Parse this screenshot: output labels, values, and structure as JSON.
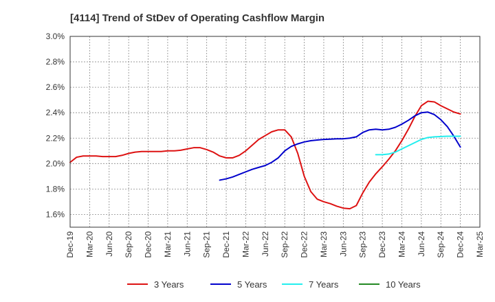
{
  "chart_data": {
    "type": "line",
    "title": "[4114]  Trend of StDev of Operating Cashflow Margin",
    "xlabel": "",
    "ylabel": "",
    "ylim": [
      1.5,
      3.0
    ],
    "y_ticks": [
      1.6,
      1.8,
      2.0,
      2.2,
      2.4,
      2.6,
      2.8,
      3.0
    ],
    "y_tick_labels": [
      "1.6%",
      "1.8%",
      "2.0%",
      "2.2%",
      "2.4%",
      "2.6%",
      "2.8%",
      "3.0%"
    ],
    "x_tick_labels": [
      "Dec-19",
      "Mar-20",
      "Jun-20",
      "Sep-20",
      "Dec-20",
      "Mar-21",
      "Jun-21",
      "Sep-21",
      "Dec-21",
      "Mar-22",
      "Jun-22",
      "Sep-22",
      "Dec-22",
      "Mar-23",
      "Jun-23",
      "Sep-23",
      "Dec-23",
      "Mar-24",
      "Jun-24",
      "Sep-24",
      "Dec-24",
      "Mar-25"
    ],
    "grid": true,
    "legend_position": "bottom",
    "series": [
      {
        "name": "3 Years",
        "color": "#dd1111",
        "points": [
          [
            "Dec-19",
            2.01
          ],
          [
            "Jan-20",
            2.05
          ],
          [
            "Feb-20",
            2.06
          ],
          [
            "Mar-20",
            2.06
          ],
          [
            "Apr-20",
            2.06
          ],
          [
            "May-20",
            2.055
          ],
          [
            "Jun-20",
            2.055
          ],
          [
            "Jul-20",
            2.055
          ],
          [
            "Aug-20",
            2.065
          ],
          [
            "Sep-20",
            2.08
          ],
          [
            "Oct-20",
            2.09
          ],
          [
            "Nov-20",
            2.095
          ],
          [
            "Dec-20",
            2.095
          ],
          [
            "Jan-21",
            2.095
          ],
          [
            "Feb-21",
            2.095
          ],
          [
            "Mar-21",
            2.1
          ],
          [
            "Apr-21",
            2.1
          ],
          [
            "May-21",
            2.105
          ],
          [
            "Jun-21",
            2.115
          ],
          [
            "Jul-21",
            2.125
          ],
          [
            "Aug-21",
            2.125
          ],
          [
            "Sep-21",
            2.11
          ],
          [
            "Oct-21",
            2.09
          ],
          [
            "Nov-21",
            2.06
          ],
          [
            "Dec-21",
            2.045
          ],
          [
            "Jan-22",
            2.045
          ],
          [
            "Feb-22",
            2.065
          ],
          [
            "Mar-22",
            2.1
          ],
          [
            "Apr-22",
            2.145
          ],
          [
            "May-22",
            2.19
          ],
          [
            "Jun-22",
            2.22
          ],
          [
            "Jul-22",
            2.25
          ],
          [
            "Aug-22",
            2.265
          ],
          [
            "Sep-22",
            2.265
          ],
          [
            "Oct-22",
            2.21
          ],
          [
            "Nov-22",
            2.08
          ],
          [
            "Dec-22",
            1.9
          ],
          [
            "Jan-23",
            1.78
          ],
          [
            "Feb-23",
            1.72
          ],
          [
            "Mar-23",
            1.7
          ],
          [
            "Apr-23",
            1.685
          ],
          [
            "May-23",
            1.665
          ],
          [
            "Jun-23",
            1.65
          ],
          [
            "Jul-23",
            1.645
          ],
          [
            "Aug-23",
            1.67
          ],
          [
            "Sep-23",
            1.77
          ],
          [
            "Oct-23",
            1.855
          ],
          [
            "Nov-23",
            1.92
          ],
          [
            "Dec-23",
            1.975
          ],
          [
            "Jan-24",
            2.035
          ],
          [
            "Feb-24",
            2.1
          ],
          [
            "Mar-24",
            2.18
          ],
          [
            "Apr-24",
            2.27
          ],
          [
            "May-24",
            2.37
          ],
          [
            "Jun-24",
            2.455
          ],
          [
            "Jul-24",
            2.49
          ],
          [
            "Aug-24",
            2.485
          ],
          [
            "Sep-24",
            2.455
          ],
          [
            "Oct-24",
            2.43
          ],
          [
            "Nov-24",
            2.405
          ],
          [
            "Dec-24",
            2.39
          ]
        ]
      },
      {
        "name": "5 Years",
        "color": "#0000cc",
        "points": [
          [
            "Nov-21",
            1.87
          ],
          [
            "Dec-21",
            1.88
          ],
          [
            "Jan-22",
            1.895
          ],
          [
            "Feb-22",
            1.915
          ],
          [
            "Mar-22",
            1.935
          ],
          [
            "Apr-22",
            1.955
          ],
          [
            "May-22",
            1.97
          ],
          [
            "Jun-22",
            1.985
          ],
          [
            "Jul-22",
            2.01
          ],
          [
            "Aug-22",
            2.045
          ],
          [
            "Sep-22",
            2.1
          ],
          [
            "Oct-22",
            2.135
          ],
          [
            "Nov-22",
            2.155
          ],
          [
            "Dec-22",
            2.17
          ],
          [
            "Jan-23",
            2.18
          ],
          [
            "Feb-23",
            2.185
          ],
          [
            "Mar-23",
            2.19
          ],
          [
            "Apr-23",
            2.192
          ],
          [
            "May-23",
            2.195
          ],
          [
            "Jun-23",
            2.195
          ],
          [
            "Jul-23",
            2.2
          ],
          [
            "Aug-23",
            2.21
          ],
          [
            "Sep-23",
            2.245
          ],
          [
            "Oct-23",
            2.265
          ],
          [
            "Nov-23",
            2.27
          ],
          [
            "Dec-23",
            2.265
          ],
          [
            "Jan-24",
            2.27
          ],
          [
            "Feb-24",
            2.285
          ],
          [
            "Mar-24",
            2.31
          ],
          [
            "Apr-24",
            2.34
          ],
          [
            "May-24",
            2.375
          ],
          [
            "Jun-24",
            2.4
          ],
          [
            "Jul-24",
            2.405
          ],
          [
            "Aug-24",
            2.385
          ],
          [
            "Sep-24",
            2.345
          ],
          [
            "Oct-24",
            2.29
          ],
          [
            "Nov-24",
            2.215
          ],
          [
            "Dec-24",
            2.13
          ]
        ]
      },
      {
        "name": "7 Years",
        "color": "#22eeee",
        "points": [
          [
            "Nov-23",
            2.07
          ],
          [
            "Dec-23",
            2.07
          ],
          [
            "Jan-24",
            2.075
          ],
          [
            "Feb-24",
            2.09
          ],
          [
            "Mar-24",
            2.115
          ],
          [
            "Apr-24",
            2.14
          ],
          [
            "May-24",
            2.165
          ],
          [
            "Jun-24",
            2.19
          ],
          [
            "Jul-24",
            2.205
          ],
          [
            "Aug-24",
            2.21
          ],
          [
            "Sep-24",
            2.213
          ],
          [
            "Oct-24",
            2.215
          ],
          [
            "Nov-24",
            2.215
          ],
          [
            "Dec-24",
            2.215
          ]
        ]
      },
      {
        "name": "10 Years",
        "color": "#228822",
        "points": []
      }
    ]
  }
}
